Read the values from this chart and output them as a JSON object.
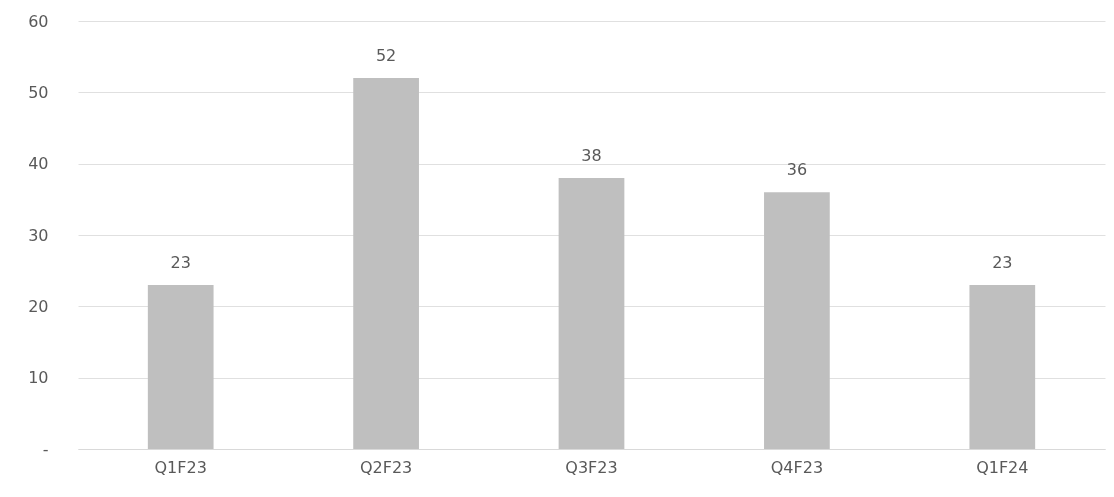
{
  "chart_data": {
    "type": "bar",
    "categories": [
      "Q1F23",
      "Q2F23",
      "Q3F23",
      "Q4F23",
      "Q1F24"
    ],
    "values": [
      23,
      52,
      38,
      36,
      23
    ],
    "color": "#bfbfbf",
    "ylim": [
      0,
      60
    ],
    "yticks": [
      {
        "value": 0,
        "label": "-"
      },
      10,
      20,
      30,
      40,
      50,
      60
    ],
    "grid": true,
    "data_labels": true
  }
}
